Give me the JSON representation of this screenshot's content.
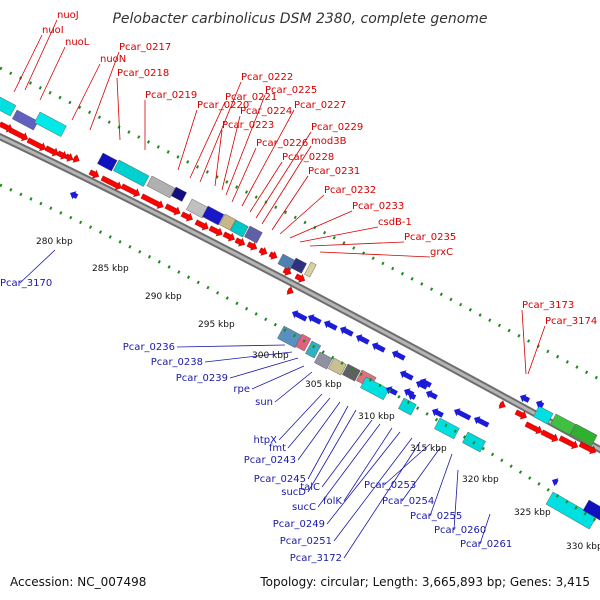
{
  "title": "Pelobacter carbinolicus DSM 2380, complete genome",
  "footer": {
    "accession": "Accession: NC_007498",
    "summary": "Topology: circular; Length: 3,665,893 bp; Genes: 3,415"
  },
  "colors": {
    "forward_label": "#d40000",
    "reverse_label": "#1a1aa8",
    "backbone": "#8a8a8a",
    "tick": "#1e8a1e"
  },
  "kbp_labels": [
    "280 kbp",
    "285 kbp",
    "290 kbp",
    "295 kbp",
    "300 kbp",
    "305 kbp",
    "310 kbp",
    "315 kbp",
    "320 kbp",
    "325 kbp",
    "330 kbp"
  ],
  "forward_genes": [
    "nuoJ",
    "nuoI",
    "nuoL",
    "nuoN",
    "Pcar_0217",
    "Pcar_0218",
    "Pcar_0219",
    "Pcar_0220",
    "Pcar_0221",
    "Pcar_0222",
    "Pcar_0223",
    "Pcar_0224",
    "Pcar_0225",
    "Pcar_0226",
    "Pcar_0227",
    "Pcar_0228",
    "Pcar_0229",
    "mod3B",
    "Pcar_0231",
    "Pcar_0232",
    "Pcar_0233",
    "csdB-1",
    "Pcar_0235",
    "grxC",
    "Pcar_3173",
    "Pcar_3174"
  ],
  "reverse_genes": [
    "Pcar_3170",
    "Pcar_0236",
    "Pcar_0238",
    "Pcar_0239",
    "rpe",
    "sun",
    "htpX",
    "fmt",
    "Pcar_0243",
    "Pcar_0245",
    "sucD",
    "talC",
    "sucC",
    "folK",
    "Pcar_0249",
    "Pcar_0251",
    "Pcar_3172",
    "Pcar_0253",
    "Pcar_0254",
    "Pcar_0255",
    "Pcar_0260",
    "Pcar_0261"
  ]
}
